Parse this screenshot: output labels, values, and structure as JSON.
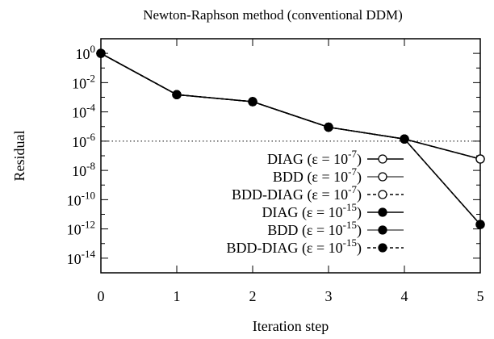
{
  "chart_data": {
    "type": "line",
    "title": "Newton-Raphson method (conventional DDM)",
    "xlabel": "Iteration step",
    "ylabel": "Residual",
    "x": [
      0,
      1,
      2,
      3,
      4,
      5
    ],
    "xlim": [
      0,
      5
    ],
    "ylim_log10": [
      -15,
      1
    ],
    "y_scale": "log",
    "x_ticks": [
      "0",
      "1",
      "2",
      "3",
      "4",
      "5"
    ],
    "y_ticks": [
      {
        "exp": 0,
        "base": "10",
        "sup": "0"
      },
      {
        "exp": -2,
        "base": "10",
        "sup": "-2"
      },
      {
        "exp": -4,
        "base": "10",
        "sup": "-4"
      },
      {
        "exp": -6,
        "base": "10",
        "sup": "-6"
      },
      {
        "exp": -8,
        "base": "10",
        "sup": "-8"
      },
      {
        "exp": -10,
        "base": "10",
        "sup": "-10"
      },
      {
        "exp": -12,
        "base": "10",
        "sup": "-12"
      },
      {
        "exp": -14,
        "base": "10",
        "sup": "-14"
      }
    ],
    "grid": false,
    "legend_position": "bottom-right",
    "threshold_line": {
      "y": 1e-06,
      "style": "dotted"
    },
    "series": [
      {
        "name": "DIAG",
        "eps": "-7",
        "marker": "open-circle",
        "line": "solid",
        "values": [
          1,
          0.0015,
          0.0005,
          9e-06,
          1.4e-06,
          6e-08
        ]
      },
      {
        "name": "BDD",
        "eps": "-7",
        "marker": "open-circle",
        "line": "thin",
        "values": [
          1,
          0.0015,
          0.0005,
          9e-06,
          1.4e-06,
          6e-08
        ]
      },
      {
        "name": "BDD-DIAG",
        "eps": "-7",
        "marker": "open-circle",
        "line": "dashed",
        "values": [
          1,
          0.0015,
          0.0005,
          9e-06,
          1.4e-06,
          6e-08
        ]
      },
      {
        "name": "DIAG",
        "eps": "-15",
        "marker": "filled-circle",
        "line": "solid",
        "values": [
          1,
          0.0015,
          0.0005,
          9e-06,
          1.4e-06,
          2e-12
        ]
      },
      {
        "name": "BDD",
        "eps": "-15",
        "marker": "filled-circle",
        "line": "thin",
        "values": [
          1,
          0.0015,
          0.0005,
          9e-06,
          1.4e-06,
          2e-12
        ]
      },
      {
        "name": "BDD-DIAG",
        "eps": "-15",
        "marker": "filled-circle",
        "line": "dashed",
        "values": [
          1,
          0.0015,
          0.0005,
          9e-06,
          1.4e-06,
          2e-12
        ]
      }
    ],
    "legend_prefix": "(ε = ",
    "legend_base": "10",
    "legend_suffix": ")"
  }
}
